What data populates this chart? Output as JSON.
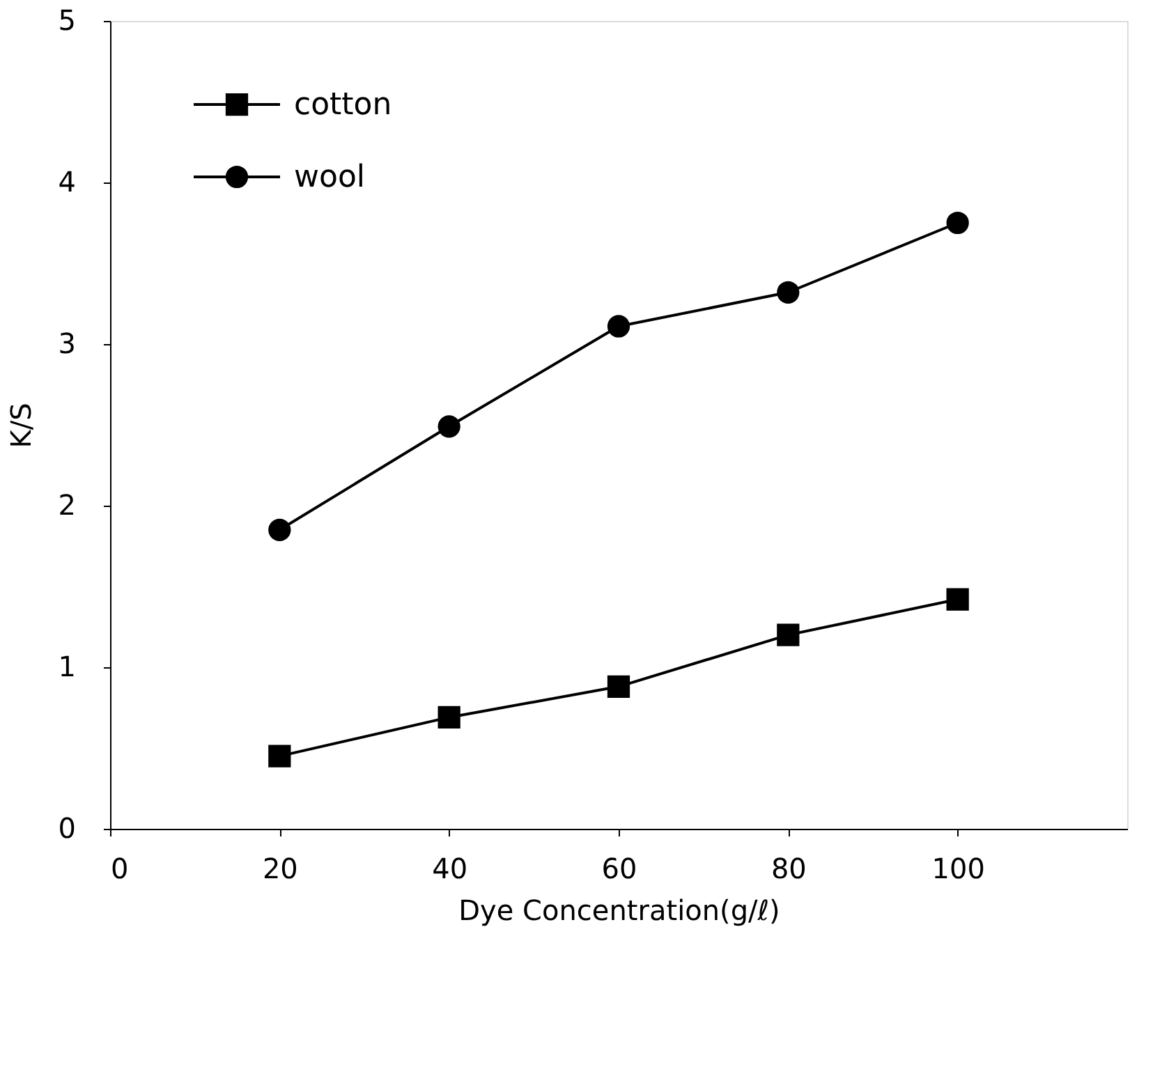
{
  "chart_data": {
    "type": "line",
    "xlabel": "Dye Concentration(g/ℓ)",
    "ylabel": "K/S",
    "x": [
      20,
      40,
      60,
      80,
      100
    ],
    "series": [
      {
        "name": "cotton",
        "color": "#000000",
        "marker": "square",
        "values": [
          0.45,
          0.69,
          0.88,
          1.2,
          1.42
        ]
      },
      {
        "name": "wool",
        "color": "#000000",
        "marker": "circle",
        "values": [
          1.85,
          2.49,
          3.11,
          3.32,
          3.75
        ]
      }
    ],
    "xlim": [
      0,
      120
    ],
    "xticks": [
      0,
      20,
      40,
      60,
      80,
      100
    ],
    "ylim": [
      0,
      5
    ],
    "yticks": [
      0,
      1,
      2,
      3,
      4,
      5
    ],
    "grid": false,
    "legend": "top left",
    "line_style": "solid"
  }
}
